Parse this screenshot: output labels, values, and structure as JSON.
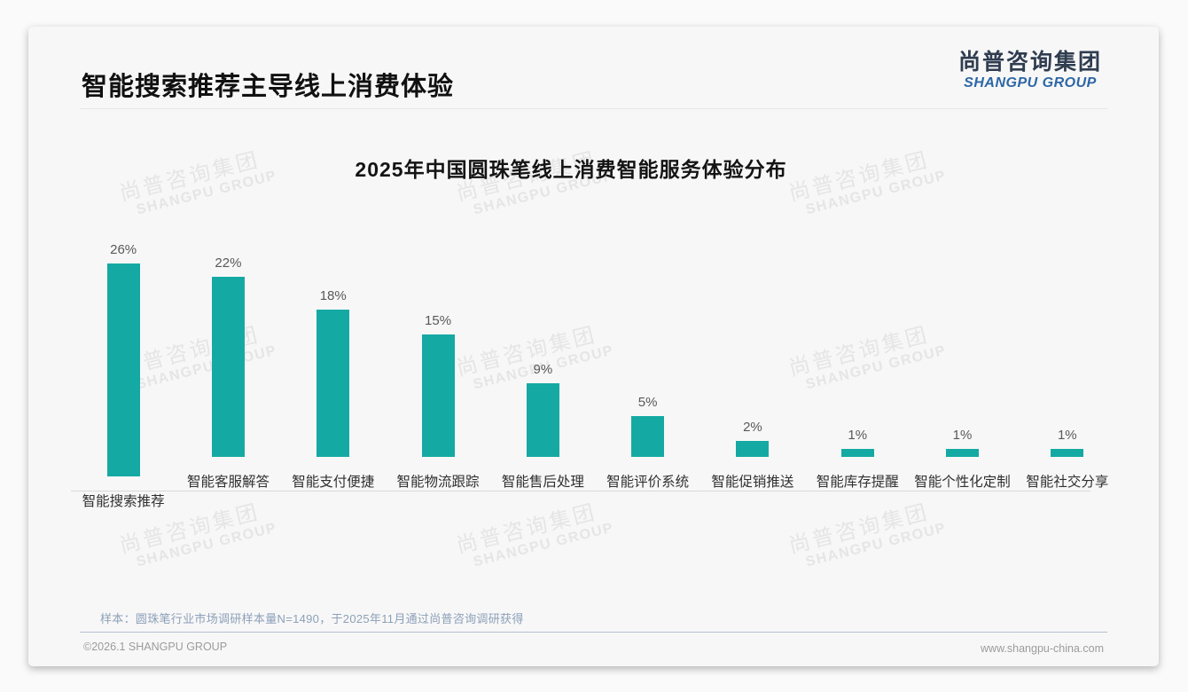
{
  "page": {
    "title": "智能搜索推荐主导线上消费体验",
    "logo": {
      "cn": "尚普咨询集团",
      "en": "SHANGPU GROUP"
    },
    "watermark": {
      "cn": "尚普咨询集团",
      "en": "SHANGPU GROUP"
    },
    "note": "样本：圆珠笔行业市场调研样本量N=1490，于2025年11月通过尚普咨询调研获得",
    "footer": {
      "left": "©2026.1 SHANGPU GROUP",
      "right": "www.shangpu-china.com"
    }
  },
  "colors": {
    "bar": "#15A9A3",
    "logo_cn": "#303C50",
    "logo_en": "#2C66A5",
    "note_text": "#8DA0B9",
    "footer_text": "#9C9C9C"
  },
  "chart_data": {
    "type": "bar",
    "title": "2025年中国圆珠笔线上消费智能服务体验分布",
    "categories": [
      "智能搜索推荐",
      "智能客服解答",
      "智能支付便捷",
      "智能物流跟踪",
      "智能售后处理",
      "智能评价系统",
      "智能促销推送",
      "智能库存提醒",
      "智能个性化定制",
      "智能社交分享"
    ],
    "values": [
      26,
      22,
      18,
      15,
      9,
      5,
      2,
      1,
      1,
      1
    ],
    "value_labels": [
      "26%",
      "22%",
      "18%",
      "15%",
      "9%",
      "5%",
      "2%",
      "1%",
      "1%",
      "1%"
    ],
    "unit": "%",
    "xlabel": "",
    "ylabel": "",
    "ylim": [
      0,
      28
    ],
    "grid": false,
    "legend": false,
    "bar_color": "#15A9A3"
  }
}
